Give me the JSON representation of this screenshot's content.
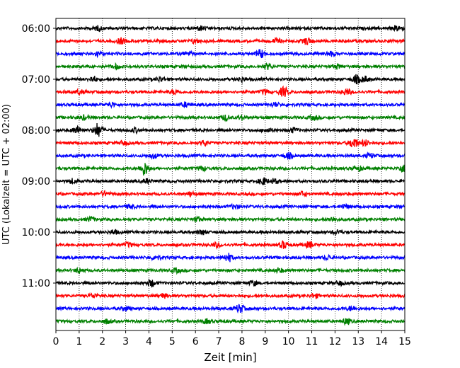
{
  "chart_data": {
    "type": "line",
    "title": "",
    "xlabel": "Zeit  [min]",
    "ylabel": "UTC (Lokalzeit = UTC + 02:00)",
    "xlim": [
      0,
      15
    ],
    "x_ticks": [
      "0",
      "1",
      "2",
      "3",
      "4",
      "5",
      "6",
      "7",
      "8",
      "9",
      "10",
      "11",
      "12",
      "13",
      "14",
      "15"
    ],
    "y_tick_labels": [
      "06:00",
      "07:00",
      "08:00",
      "09:00",
      "10:00",
      "11:00"
    ],
    "grid": "vertical dotted",
    "line_colors": [
      "#000000",
      "#ff0000",
      "#0000ff",
      "#008000"
    ],
    "series": [
      {
        "start": "06:00",
        "color": "#000000",
        "events": [
          [
            1.8,
            0.3
          ],
          [
            6.2,
            0.3
          ],
          [
            14.7,
            0.4
          ]
        ]
      },
      {
        "start": "06:15",
        "color": "#ff0000",
        "events": [
          [
            2.8,
            0.4
          ],
          [
            6.0,
            0.3
          ],
          [
            9.5,
            0.3
          ],
          [
            10.8,
            0.5
          ]
        ]
      },
      {
        "start": "06:30",
        "color": "#0000ff",
        "events": [
          [
            1.8,
            0.3
          ],
          [
            5.7,
            0.3
          ],
          [
            8.8,
            0.6
          ],
          [
            11.8,
            0.3
          ]
        ]
      },
      {
        "start": "06:45",
        "color": "#008000",
        "events": [
          [
            2.6,
            0.3
          ],
          [
            9.1,
            0.4
          ],
          [
            12.1,
            0.3
          ]
        ]
      },
      {
        "start": "07:00",
        "color": "#000000",
        "events": [
          [
            1.6,
            0.4
          ],
          [
            4.5,
            0.3
          ],
          [
            8.0,
            0.3
          ],
          [
            12.9,
            0.6
          ],
          [
            13.3,
            0.4
          ]
        ]
      },
      {
        "start": "07:15",
        "color": "#ff0000",
        "events": [
          [
            1.0,
            0.3
          ],
          [
            5.1,
            0.3
          ],
          [
            9.0,
            0.3
          ],
          [
            9.8,
            0.7
          ],
          [
            12.5,
            0.4
          ]
        ]
      },
      {
        "start": "07:30",
        "color": "#0000ff",
        "events": [
          [
            2.4,
            0.3
          ],
          [
            5.6,
            0.3
          ],
          [
            9.4,
            0.3
          ]
        ]
      },
      {
        "start": "07:45",
        "color": "#008000",
        "events": [
          [
            1.2,
            0.3
          ],
          [
            7.3,
            0.4
          ],
          [
            8.0,
            0.3
          ],
          [
            11.1,
            0.3
          ]
        ]
      },
      {
        "start": "08:00",
        "color": "#000000",
        "events": [
          [
            0.9,
            0.5
          ],
          [
            1.8,
            1.0
          ],
          [
            3.4,
            0.3
          ],
          [
            9.1,
            0.3
          ],
          [
            10.2,
            0.3
          ]
        ]
      },
      {
        "start": "08:15",
        "color": "#ff0000",
        "events": [
          [
            2.9,
            0.3
          ],
          [
            6.4,
            0.3
          ],
          [
            12.8,
            0.8
          ],
          [
            13.3,
            0.4
          ]
        ]
      },
      {
        "start": "08:30",
        "color": "#0000ff",
        "events": [
          [
            4.2,
            0.3
          ],
          [
            10.0,
            0.4
          ],
          [
            13.5,
            0.3
          ]
        ]
      },
      {
        "start": "08:45",
        "color": "#008000",
        "events": [
          [
            3.8,
            1.0
          ],
          [
            6.3,
            0.3
          ],
          [
            13.0,
            0.3
          ],
          [
            14.9,
            0.5
          ]
        ]
      },
      {
        "start": "09:00",
        "color": "#000000",
        "events": [
          [
            0.7,
            0.3
          ],
          [
            3.9,
            0.3
          ],
          [
            8.9,
            0.5
          ],
          [
            9.4,
            0.3
          ]
        ]
      },
      {
        "start": "09:15",
        "color": "#ff0000",
        "events": [
          [
            2.1,
            0.3
          ],
          [
            5.8,
            0.3
          ],
          [
            10.6,
            0.3
          ]
        ]
      },
      {
        "start": "09:30",
        "color": "#0000ff",
        "events": [
          [
            3.2,
            0.3
          ],
          [
            7.7,
            0.3
          ],
          [
            12.4,
            0.3
          ]
        ]
      },
      {
        "start": "09:45",
        "color": "#008000",
        "events": [
          [
            1.5,
            0.3
          ],
          [
            6.1,
            0.3
          ],
          [
            11.9,
            0.3
          ]
        ]
      },
      {
        "start": "10:00",
        "color": "#000000",
        "events": [
          [
            2.5,
            0.3
          ],
          [
            6.3,
            0.3
          ],
          [
            12.1,
            0.3
          ]
        ]
      },
      {
        "start": "10:15",
        "color": "#ff0000",
        "events": [
          [
            3.1,
            0.3
          ],
          [
            6.9,
            0.3
          ],
          [
            9.8,
            0.5
          ],
          [
            10.9,
            0.4
          ]
        ]
      },
      {
        "start": "10:30",
        "color": "#0000ff",
        "events": [
          [
            4.3,
            0.3
          ],
          [
            7.4,
            0.6
          ],
          [
            11.7,
            0.3
          ]
        ]
      },
      {
        "start": "10:45",
        "color": "#008000",
        "events": [
          [
            1.0,
            0.3
          ],
          [
            5.2,
            0.3
          ],
          [
            9.6,
            0.3
          ]
        ]
      },
      {
        "start": "11:00",
        "color": "#000000",
        "events": [
          [
            4.1,
            0.5
          ],
          [
            8.5,
            0.3
          ],
          [
            12.2,
            0.3
          ]
        ]
      },
      {
        "start": "11:15",
        "color": "#ff0000",
        "events": [
          [
            1.6,
            0.3
          ],
          [
            4.6,
            0.3
          ],
          [
            11.1,
            0.3
          ]
        ]
      },
      {
        "start": "11:30",
        "color": "#0000ff",
        "events": [
          [
            3.0,
            0.3
          ],
          [
            7.9,
            0.6
          ],
          [
            12.7,
            0.3
          ]
        ]
      },
      {
        "start": "11:45",
        "color": "#008000",
        "events": [
          [
            2.2,
            0.3
          ],
          [
            6.5,
            0.3
          ],
          [
            12.5,
            0.4
          ]
        ]
      }
    ]
  }
}
